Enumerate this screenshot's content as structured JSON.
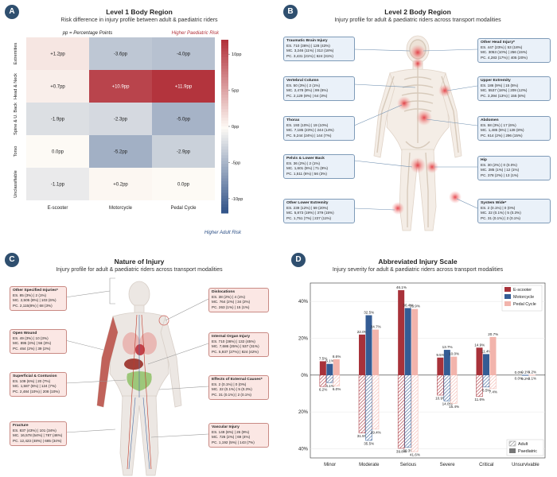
{
  "panelA": {
    "badge": "A",
    "title": "Level 1 Body Region",
    "subtitle": "Risk difference in injury profile between adult & paediatric riders",
    "note": "pp = Percentage Points",
    "high_label": "Higher Paediatric Risk",
    "low_label": "Higher Adult Risk"
  },
  "panelB": {
    "badge": "B",
    "title": "Level 2 Body Region",
    "subtitle": "Injury profile for adult & paediatric riders across transport modalities",
    "boxes": [
      {
        "title": "Traumatic Brain Injury",
        "lines": [
          "ES. 710 (36%) | 128 (43%)",
          "MC. 3,246 (11%) | 312 (18%)",
          "PC. 3,431 (21%) | 624 (31%)"
        ]
      },
      {
        "title": "Vertebral Column",
        "lines": [
          "ES. 50 (3%) | 2 (1%)",
          "MC. 2,478 (8%) | 99 (6%)",
          "PC. 2,129 (8%) | 64 (3%)"
        ]
      },
      {
        "title": "Thorax",
        "lines": [
          "ES. 193 (10%) | 19 (10%)",
          "MC. 7,185 (23%) | 244 (14%)",
          "PC. 5,244 (24%) | 144 (7%)"
        ]
      },
      {
        "title": "Pelvis & Lower Back",
        "lines": [
          "ES. 36 (2%) | 2 (1%)",
          "MC. 1,601 (5%) | 71 (8%)",
          "PC. 1,511 (6%) | 56 (3%)"
        ]
      },
      {
        "title": "Other Lower Extremity",
        "lines": [
          "ES. 239 (12%) | 59 (20%)",
          "MC. 5,873 (19%) | 379 (15%)",
          "PC. 1,751 (7%) | 227 (11%)"
        ]
      },
      {
        "title": "Other Head Injury*",
        "lines": [
          "ES. 447 (23%) | 53 (18%)",
          "MC. 3053 (10%) | 256 (15%)",
          "PC. 4,283 (17%) | 405 (20%)"
        ]
      },
      {
        "title": "Upper Extremity",
        "lines": [
          "ES. 186 (9%) | 15 (5%)",
          "MC. 5537 (18%) | 209 (12%)",
          "PC. 3,394 (13%) | 155 (8%)"
        ]
      },
      {
        "title": "Abdomen",
        "lines": [
          "ES. 58 (3%) | 17 (6%)",
          "MC. 1,485 (5%) | 128 (8%)",
          "PC. 614 (2%) | 296 (15%)"
        ]
      },
      {
        "title": "Hip",
        "lines": [
          "ES. 30 (2%) | 0 (0.0%)",
          "MC. 285 (1%) | 12 (1%)",
          "PC. 378 (2%) | 13 (1%)"
        ]
      },
      {
        "title": "System Wide*",
        "lines": [
          "ES. 2 (0.1%) | 0 (0%)",
          "MC. 22 (0.1%) | 5 (0.3%)",
          "PC. 31 (0.1%) | 2 (0.1%)"
        ]
      }
    ]
  },
  "panelC": {
    "badge": "C",
    "title": "Nature of Injury",
    "subtitle": "Injury profile for adult & paediatric riders across transport modalities",
    "boxes": [
      {
        "title": "Other Specified Injuries*",
        "lines": [
          "ES. 85 (3%) | 2 (1%)",
          "MC. 2,505 (8%) | 103 (6%)",
          "PC. 2,115(8%) | 68 (3%)"
        ]
      },
      {
        "title": "Open Wound",
        "lines": [
          "ES. 49 (3%) | 10 (3%)",
          "MC. 895 (3%) | 56 (3%)",
          "PC. 464 (2%) | 39 (2%)"
        ]
      },
      {
        "title": "Superficial & Contusion",
        "lines": [
          "ES. 109 (6%) | 20 (7%)",
          "MC. 1,587 (5%) | 124 (7%)",
          "PC. 2,484 (10%) | 208 (10%)"
        ]
      },
      {
        "title": "Fracture",
        "lines": [
          "ES. 837 (43%) | 101 (34%)",
          "MC. 16,578 (54%) | 787 (46%)",
          "PC. 12,423 (48%) | 685 (34%)"
        ]
      },
      {
        "title": "Dislocations",
        "lines": [
          "ES. 38 (2%) | 4 (1%)",
          "MC. 764 (2%) | 34 (2%)",
          "PC. 263 (1%) | 15 (1%)"
        ]
      },
      {
        "title": "Internal Organ Injury",
        "lines": [
          "ES. 710 (36%) | 132 (45%)",
          "MC. 7,686 (25%) | 537 (31%)",
          "PC. 5,937 (27%) | 824 (42%)"
        ]
      },
      {
        "title": "Effects of External Causes*",
        "lines": [
          "ES. 2 (0.1%) | 0 (0%)",
          "MC. 22 (0.1%) | 5 (0.3%)",
          "PC. 31 (0.1%) | 2 (0.1%)"
        ]
      },
      {
        "title": "Vascular Injury",
        "lines": [
          "ES. 149 (8%) | 26 (9%)",
          "MC. 726 (2%) | 69 (4%)",
          "PC. 1,192 (5%) | 143 (7%)"
        ]
      }
    ]
  },
  "panelD": {
    "badge": "D",
    "title": "Abbreviated Injury Scale",
    "subtitle": "Injury severity for adult & paediatric riders across transport modalities"
  },
  "chart_data": [
    {
      "type": "heatmap",
      "title": "Level 1 Body Region",
      "subtitle": "Risk difference in injury profile between adult & paediatric riders",
      "rows": [
        "Extremities",
        "Head & Neck",
        "Spine & U. Back",
        "Torso",
        "Unclassifiable"
      ],
      "columns": [
        "E-scooter",
        "Motorcycle",
        "Pedal Cycle"
      ],
      "values": [
        [
          1.2,
          -3.6,
          -4.0
        ],
        [
          0.7,
          10.9,
          11.9
        ],
        [
          -1.9,
          -2.3,
          -5.0
        ],
        [
          0.0,
          -5.2,
          -2.9
        ],
        [
          -1.1,
          0.2,
          0.0
        ]
      ],
      "cell_labels": [
        [
          "+1.2pp",
          "-3.6pp",
          "-4.0pp"
        ],
        [
          "+0.7pp",
          "+10.9pp",
          "+11.9pp"
        ],
        [
          "-1.9pp",
          "-2.3pp",
          "-5.0pp"
        ],
        [
          "0.0pp",
          "-5.2pp",
          "-2.9pp"
        ],
        [
          "-1.1pp",
          "+0.2pp",
          "0.0pp"
        ]
      ],
      "colorbar": {
        "range": [
          -12,
          12
        ],
        "ticks": [
          10,
          5,
          0,
          -5,
          -10
        ],
        "tick_labels": [
          "10pp",
          "5pp",
          "0pp",
          "-5pp",
          "-10pp"
        ],
        "high_color": "#b2323b",
        "low_color": "#2c4f86",
        "mid_color": "#fdfaf5"
      }
    },
    {
      "type": "bar",
      "title": "Abbreviated Injury Scale",
      "categories": [
        "Minor",
        "Moderate",
        "Serious",
        "Severe",
        "Critical",
        "Unsurvivable"
      ],
      "ylim": [
        -45,
        50
      ],
      "yticks": [
        40,
        20,
        0,
        -20,
        -40
      ],
      "ytick_labels": [
        "40%",
        "20%",
        "0%",
        "20%",
        "40%"
      ],
      "legend_modes": [
        "E-scooter",
        "Motorcycle",
        "Pedal Cycle"
      ],
      "legend_groups": [
        "Adult",
        "Paediatric"
      ],
      "series": [
        {
          "name": "E-scooter",
          "group": "Paediatric",
          "values": [
            7.5,
            22.0,
            46.1,
            9.5,
            14.9,
            0.0
          ],
          "labels": [
            "7.5%",
            "22.0%",
            "46.1%",
            "9.5%",
            "14.9%",
            "0.0%"
          ],
          "color": "#a8323a"
        },
        {
          "name": "Motorcycle",
          "group": "Paediatric",
          "values": [
            6.1,
            32.5,
            36.4,
            13.7,
            11.4,
            0.1
          ],
          "labels": [
            "6.1%",
            "32.5%",
            "36.4%",
            "13.7%",
            "11.4%",
            "0.1%"
          ],
          "color": "#345c94"
        },
        {
          "name": "Pedal Cycle",
          "group": "Paediatric",
          "values": [
            8.6,
            24.7,
            35.9,
            10.0,
            20.7,
            0.2
          ],
          "labels": [
            "8.6%",
            "24.7%",
            "35.9%",
            "10.0%",
            "20.7%",
            "0.2%"
          ],
          "color": "#f2b4ac"
        },
        {
          "name": "E-scooter",
          "group": "Adult",
          "values": [
            6.2,
            31.5,
            39.8,
            10.9,
            11.6,
            0.0
          ],
          "labels": [
            "6.2%",
            "31.5%",
            "39.8%",
            "10.9%",
            "11.6%",
            "0.0%"
          ],
          "color": "#a8323a"
        },
        {
          "name": "Motorcycle",
          "group": "Adult",
          "values": [
            4.1,
            35.5,
            39.3,
            14.0,
            6.5,
            0.2
          ],
          "labels": [
            "4.1%",
            "35.5%",
            "39.3%",
            "14.0%",
            "6.5%",
            "0.2%"
          ],
          "color": "#345c94"
        },
        {
          "name": "Pedal Cycle",
          "group": "Adult",
          "values": [
            6.0,
            29.4,
            41.6,
            15.4,
            7.4,
            0.1
          ],
          "labels": [
            "6.0%",
            "29.4%",
            "41.6%",
            "15.4%",
            "7.4%",
            "0.1%"
          ],
          "color": "#f2b4ac"
        }
      ]
    }
  ]
}
